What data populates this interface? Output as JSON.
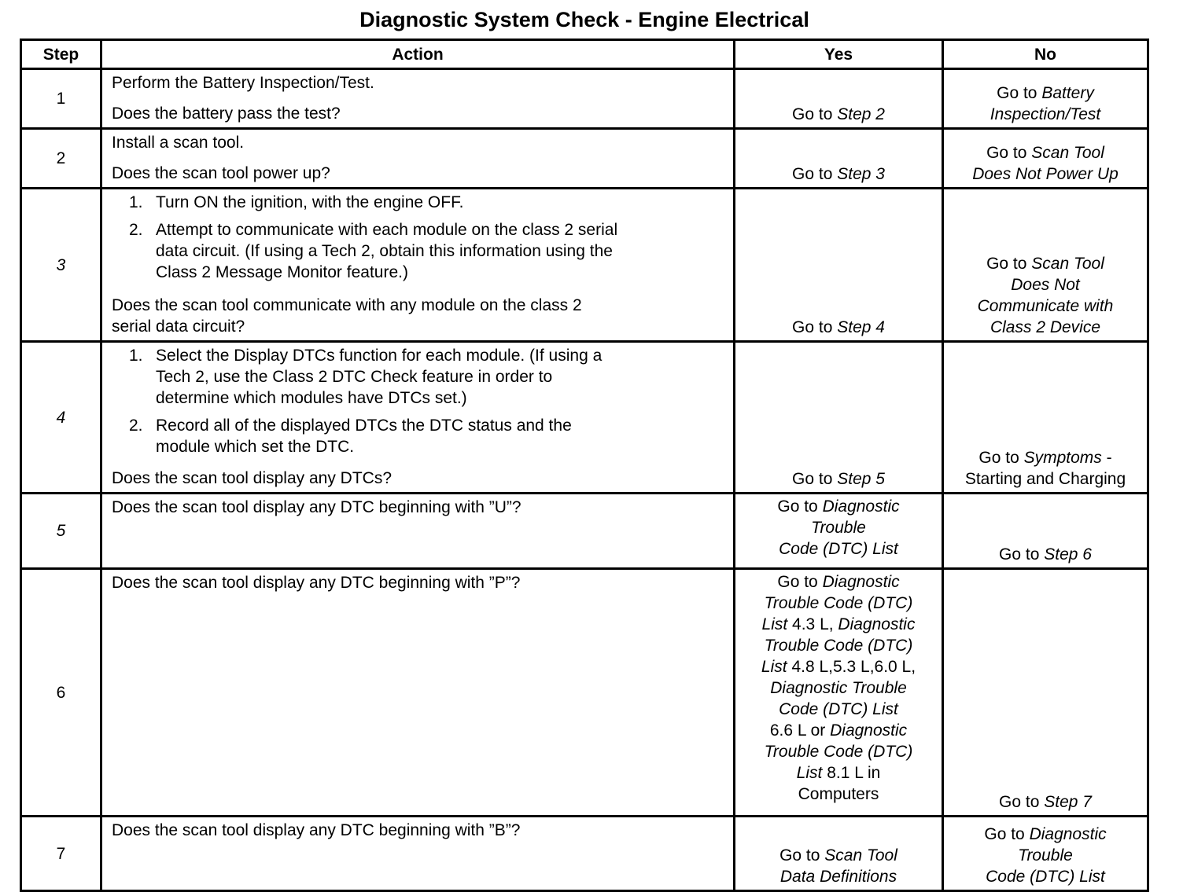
{
  "title": "Diagnostic System Check - Engine Electrical",
  "headers": {
    "step": "Step",
    "action": "Action",
    "yes": "Yes",
    "no": "No"
  },
  "rows": [
    {
      "step": "1",
      "step_italic": false,
      "action": {
        "items": [
          {
            "type": "p",
            "lines": [
              "Perform the Battery Inspection/Test."
            ]
          }
        ],
        "question": [
          "Does the battery pass the test?"
        ]
      },
      "yes": {
        "lines": [
          [
            {
              "t": "Go to "
            },
            {
              "t": "Step 2",
              "i": true
            }
          ]
        ]
      },
      "no": {
        "lines": [
          [
            {
              "t": "Go to "
            },
            {
              "t": "Battery",
              "i": true
            }
          ],
          [
            {
              "t": "Inspection/Test",
              "i": true
            }
          ]
        ]
      }
    },
    {
      "step": "2",
      "step_italic": false,
      "action": {
        "items": [
          {
            "type": "p",
            "lines": [
              "Install a scan tool."
            ]
          }
        ],
        "question": [
          "Does the scan tool power up?"
        ]
      },
      "yes": {
        "lines": [
          [
            {
              "t": "Go to "
            },
            {
              "t": "Step 3",
              "i": true
            }
          ]
        ]
      },
      "no": {
        "lines": [
          [
            {
              "t": "Go to "
            },
            {
              "t": "Scan Tool",
              "i": true
            }
          ],
          [
            {
              "t": "Does Not Power Up",
              "i": true
            }
          ]
        ]
      }
    },
    {
      "step": "3",
      "step_italic": true,
      "action": {
        "items": [
          {
            "type": "li",
            "num": "1.",
            "lines": [
              "Turn ON the ignition, with the engine OFF."
            ]
          },
          {
            "type": "li",
            "num": "2.",
            "lines": [
              "Attempt to communicate with each module on the class 2 serial",
              "data circuit. (If using a Tech 2, obtain this information using the",
              "Class 2 Message Monitor feature.)"
            ]
          }
        ],
        "question": [
          "Does the scan tool communicate with any module on the class 2",
          "serial data circuit?"
        ]
      },
      "yes": {
        "lines": [
          [
            {
              "t": "Go to "
            },
            {
              "t": "Step 4",
              "i": true
            }
          ]
        ]
      },
      "no": {
        "lines": [
          [
            {
              "t": "Go to "
            },
            {
              "t": "Scan Tool",
              "i": true
            }
          ],
          [
            {
              "t": "Does Not",
              "i": true
            }
          ],
          [
            {
              "t": "Communicate with",
              "i": true
            }
          ],
          [
            {
              "t": "Class 2 Device",
              "i": true
            }
          ]
        ]
      }
    },
    {
      "step": "4",
      "step_italic": true,
      "action": {
        "items": [
          {
            "type": "li",
            "num": "1.",
            "lines": [
              "Select the Display DTCs function for each module. (If using a",
              "Tech 2, use the Class 2 DTC Check feature in order to",
              "determine which modules have DTCs set.)"
            ]
          },
          {
            "type": "li",
            "num": "2.",
            "lines": [
              "Record all of the displayed DTCs the DTC status and the",
              "module which set the DTC."
            ]
          }
        ],
        "question": [
          "Does the scan tool display any DTCs?"
        ]
      },
      "yes": {
        "lines": [
          [
            {
              "t": "Go to "
            },
            {
              "t": "Step 5",
              "i": true
            }
          ]
        ]
      },
      "no": {
        "lines": [
          [
            {
              "t": "Go to "
            },
            {
              "t": "Symptoms",
              "i": true
            },
            {
              "t": " -"
            }
          ],
          [
            {
              "t": "Starting and Charging"
            }
          ]
        ]
      }
    },
    {
      "step": "5",
      "step_italic": true,
      "action": {
        "items": [],
        "question": [
          "Does the scan tool display any DTC beginning with ”U”?"
        ]
      },
      "yes": {
        "top": true,
        "lines": [
          [
            {
              "t": "Go to "
            },
            {
              "t": "Diagnostic",
              "i": true
            }
          ],
          [
            {
              "t": "Trouble",
              "i": true
            }
          ],
          [
            {
              "t": "Code (DTC) List",
              "i": true
            }
          ]
        ]
      },
      "no": {
        "lines": [
          [
            {
              "t": "Go to "
            },
            {
              "t": "Step 6",
              "i": true
            }
          ]
        ]
      }
    },
    {
      "step": "6",
      "step_italic": false,
      "action": {
        "items": [],
        "question": [
          "Does the scan tool display any DTC beginning with ”P”?"
        ]
      },
      "yes": {
        "top": true,
        "lines": [
          [
            {
              "t": "Go to "
            },
            {
              "t": "Diagnostic",
              "i": true
            }
          ],
          [
            {
              "t": "Trouble Code (DTC)",
              "i": true
            }
          ],
          [
            {
              "t": "List",
              "i": true
            },
            {
              "t": " 4.3 L, "
            },
            {
              "t": "Diagnostic",
              "i": true
            }
          ],
          [
            {
              "t": "Trouble Code (DTC)",
              "i": true
            }
          ],
          [
            {
              "t": "List",
              "i": true
            },
            {
              "t": " 4.8 L,5.3 L,6.0 L,"
            }
          ],
          [
            {
              "t": "Diagnostic Trouble",
              "i": true
            }
          ],
          [
            {
              "t": "Code (DTC) List",
              "i": true
            }
          ],
          [
            {
              "t": "6.6 L or "
            },
            {
              "t": "Diagnostic",
              "i": true
            }
          ],
          [
            {
              "t": "Trouble Code (DTC)",
              "i": true
            }
          ],
          [
            {
              "t": "List",
              "i": true
            },
            {
              "t": " 8.1 L in"
            }
          ],
          [
            {
              "t": "Computers"
            }
          ]
        ]
      },
      "no": {
        "lines": [
          [
            {
              "t": "Go to "
            },
            {
              "t": "Step 7",
              "i": true
            }
          ]
        ]
      }
    },
    {
      "step": "7",
      "step_italic": false,
      "action": {
        "items": [],
        "question": [
          "Does the scan tool display any DTC beginning with ”B”?"
        ]
      },
      "yes": {
        "lines": [
          [
            {
              "t": "Go to "
            },
            {
              "t": "Scan Tool",
              "i": true
            }
          ],
          [
            {
              "t": "Data Definitions",
              "i": true
            }
          ]
        ]
      },
      "no": {
        "lines": [
          [
            {
              "t": "Go to "
            },
            {
              "t": "Diagnostic",
              "i": true
            }
          ],
          [
            {
              "t": "Trouble",
              "i": true
            }
          ],
          [
            {
              "t": "Code (DTC) List",
              "i": true
            }
          ]
        ]
      }
    }
  ]
}
